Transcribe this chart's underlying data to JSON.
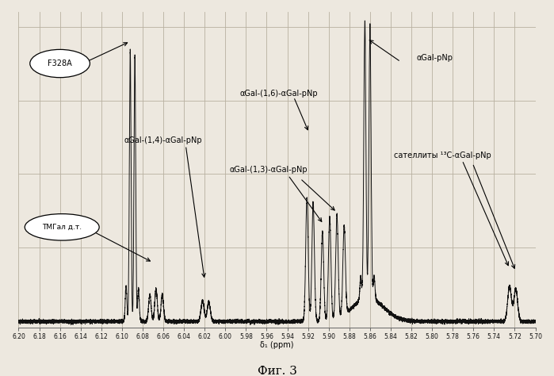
{
  "title": "Фиг. 3",
  "xlabel": "δ₁ (ppm)",
  "xmin": 5.7,
  "xmax": 6.2,
  "ymin": -0.02,
  "ymax": 1.05,
  "bg_color": "#ede8df",
  "grid_color": "#b8b0a0",
  "line_color": "#111111",
  "xticks": [
    6.2,
    6.18,
    6.16,
    6.14,
    6.12,
    6.1,
    6.08,
    6.06,
    6.04,
    6.02,
    6.0,
    5.98,
    5.96,
    5.94,
    5.92,
    5.9,
    5.88,
    5.86,
    5.84,
    5.82,
    5.8,
    5.78,
    5.76,
    5.74,
    5.72,
    5.7
  ]
}
